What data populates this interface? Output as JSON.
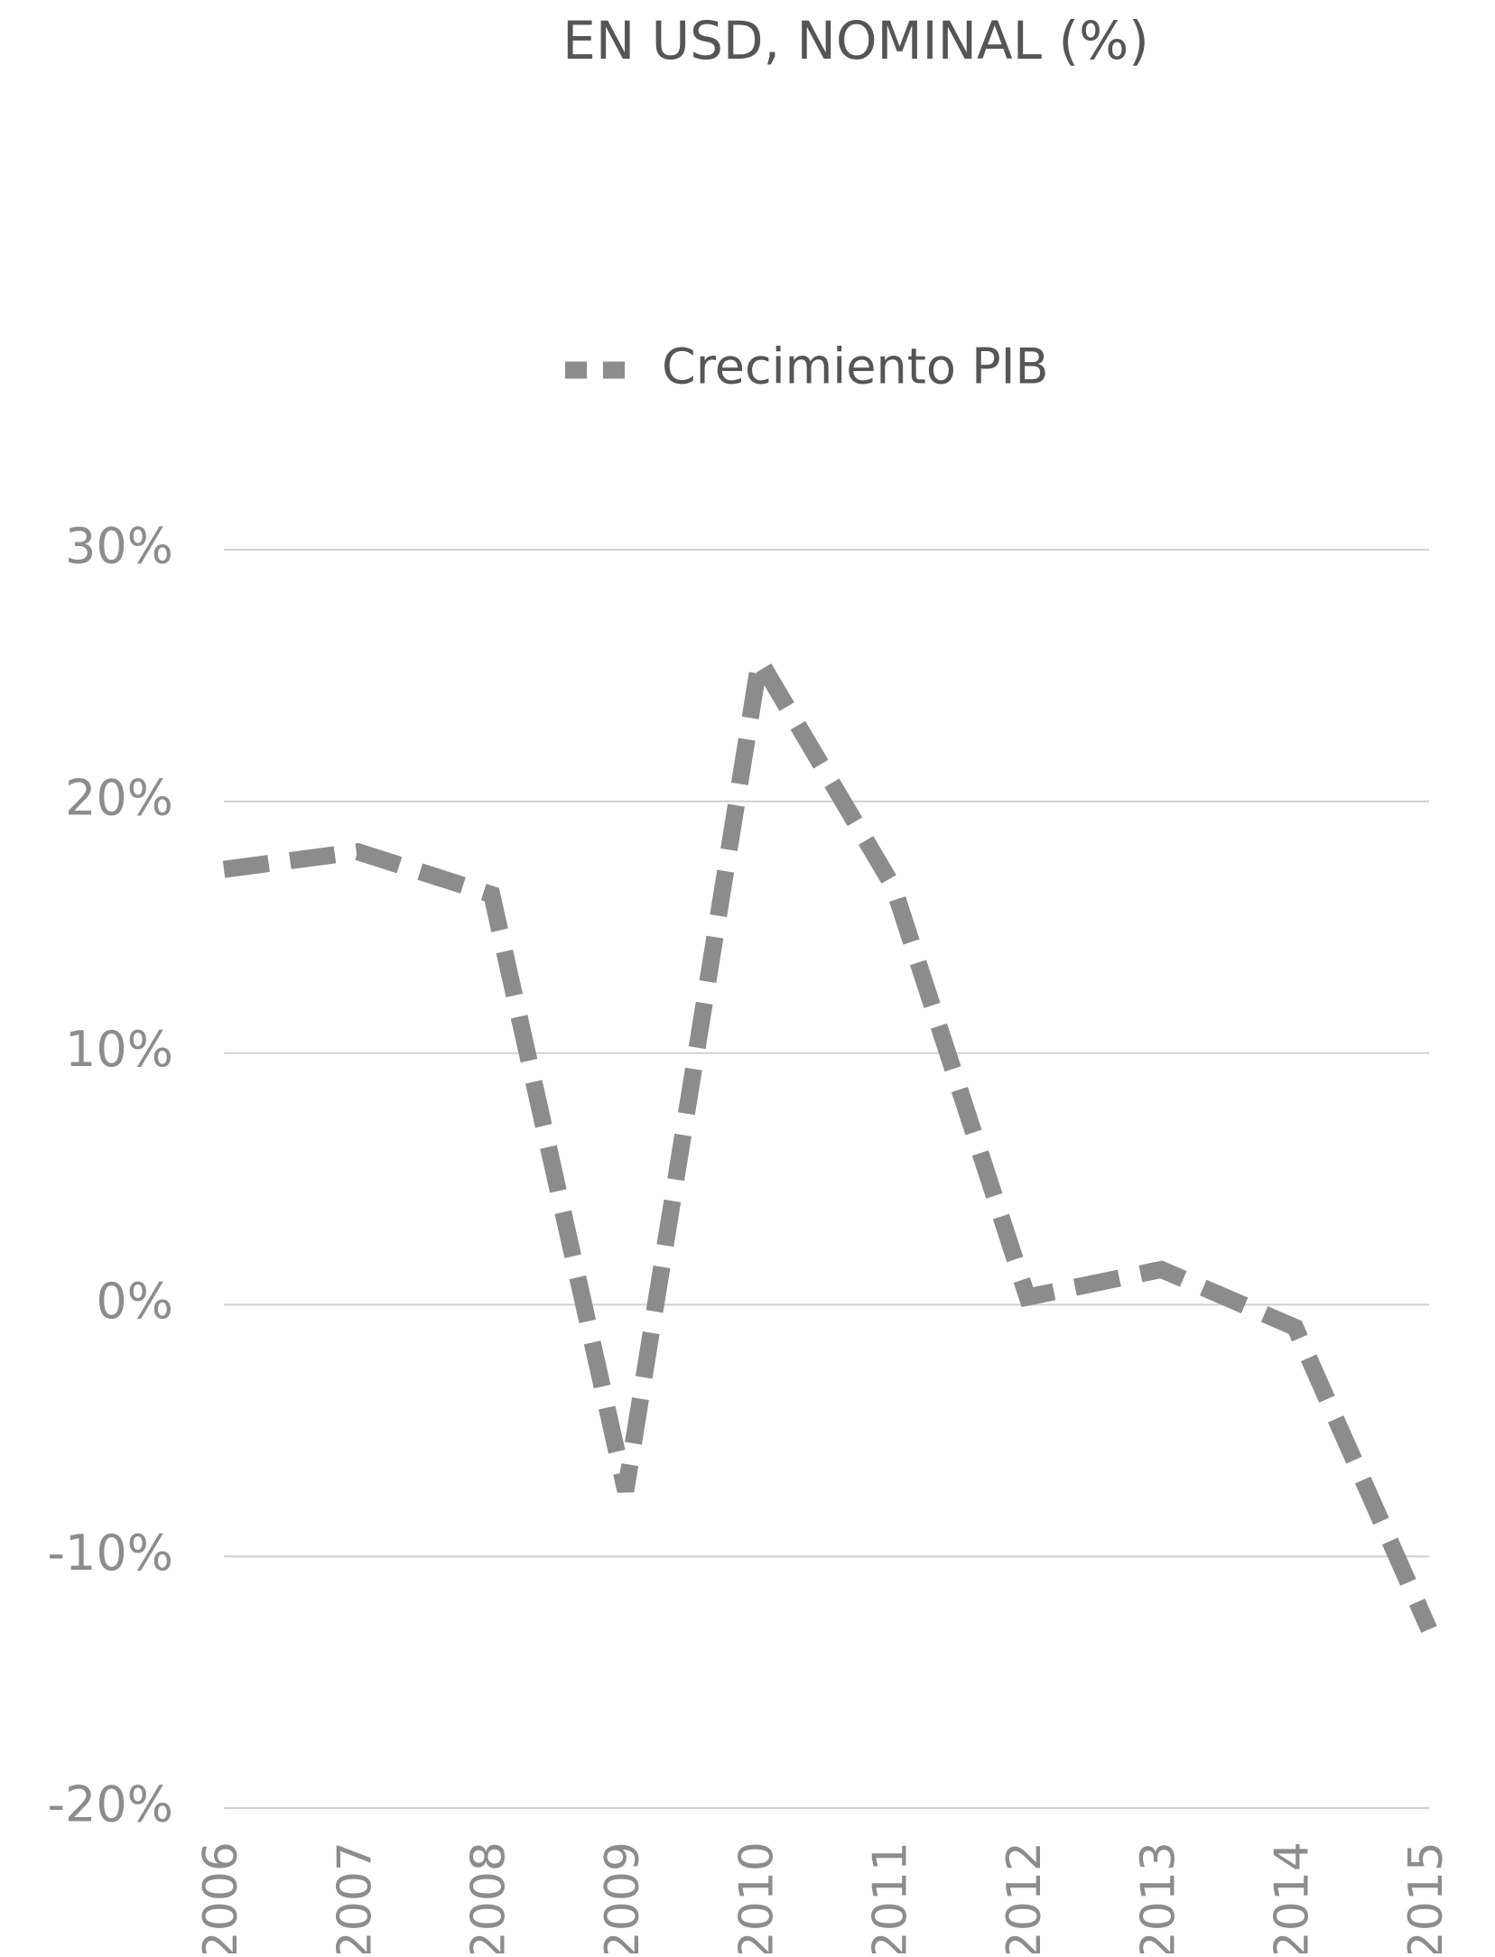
{
  "chart_data": {
    "type": "line",
    "title": "EN USD, NOMINAL (%)",
    "categories": [
      "2006",
      "2007",
      "2008",
      "2009",
      "2010",
      "2011",
      "2012",
      "2013",
      "2014",
      "2015"
    ],
    "series": [
      {
        "name": "Crecimiento PIB",
        "color": "#8c8c8c",
        "values": [
          17.3,
          18.0,
          16.3,
          -7.4,
          25.6,
          16.6,
          0.3,
          1.4,
          -0.9,
          -12.9
        ]
      }
    ],
    "ylim": [
      -20,
      30
    ],
    "yticks": [
      {
        "value": -20,
        "label": "-20%"
      },
      {
        "value": -10,
        "label": "-10%"
      },
      {
        "value": 0,
        "label": "0%"
      },
      {
        "value": 10,
        "label": "10%"
      },
      {
        "value": 20,
        "label": "20%"
      },
      {
        "value": 30,
        "label": "30%"
      }
    ],
    "grid": true,
    "legend": "top"
  }
}
